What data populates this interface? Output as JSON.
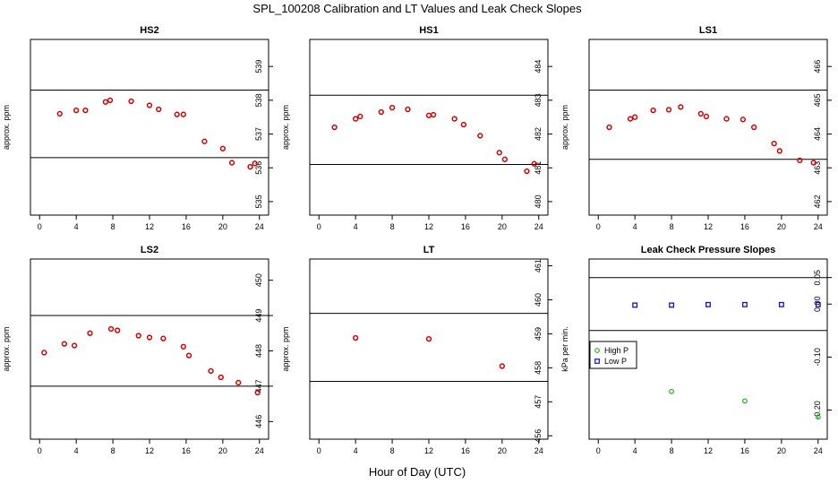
{
  "title": "SPL_100208  Calibration and LT Values and Leak Check Slopes",
  "xlabel": "Hour of Day (UTC)",
  "colors": {
    "points": "#d40000",
    "high": "#22bb22",
    "low": "#1111cc",
    "lines": "#000000"
  },
  "chart_data": [
    {
      "type": "scatter",
      "title": "HS2",
      "ylabel": "approx. ppm",
      "xlim": [
        -1,
        25
      ],
      "ylim": [
        534.6,
        539.8
      ],
      "xticks": [
        "0",
        "4",
        "8",
        "12",
        "16",
        "20",
        "24"
      ],
      "yticks": [
        "535",
        "536",
        "537",
        "538",
        "539"
      ],
      "hlines": [
        536.3,
        538.3
      ],
      "x": [
        2.2,
        4.0,
        5.0,
        7.2,
        7.7,
        10.0,
        12.0,
        13.0,
        15.0,
        15.7,
        18.0,
        20.0,
        21.0,
        23.0,
        23.5
      ],
      "y": [
        537.6,
        537.7,
        537.7,
        537.95,
        538.0,
        537.97,
        537.85,
        537.73,
        537.58,
        537.58,
        536.78,
        536.57,
        536.15,
        536.03,
        536.13
      ]
    },
    {
      "type": "scatter",
      "title": "HS1",
      "ylabel": "approx. ppm",
      "xlim": [
        -1,
        25
      ],
      "ylim": [
        479.6,
        484.8
      ],
      "xticks": [
        "0",
        "4",
        "8",
        "12",
        "16",
        "20",
        "24"
      ],
      "yticks": [
        "480",
        "481",
        "482",
        "483",
        "484"
      ],
      "hlines": [
        481.1,
        483.15
      ],
      "x": [
        1.7,
        4.0,
        4.5,
        6.8,
        8.0,
        9.7,
        12.0,
        12.5,
        14.8,
        15.8,
        17.6,
        19.7,
        20.3,
        22.7,
        23.5
      ],
      "y": [
        482.2,
        482.45,
        482.52,
        482.65,
        482.78,
        482.73,
        482.55,
        482.57,
        482.45,
        482.28,
        481.95,
        481.45,
        481.25,
        480.9,
        481.12
      ]
    },
    {
      "type": "scatter",
      "title": "LS1",
      "ylabel": "approx. ppm",
      "xlim": [
        -1,
        25
      ],
      "ylim": [
        461.6,
        466.8
      ],
      "xticks": [
        "0",
        "4",
        "8",
        "12",
        "16",
        "20",
        "24"
      ],
      "yticks": [
        "462",
        "463",
        "464",
        "465",
        "466"
      ],
      "hlines": [
        463.25,
        465.3
      ],
      "x": [
        1.2,
        3.5,
        4.0,
        6.0,
        7.7,
        9.0,
        11.2,
        11.8,
        14.0,
        15.8,
        17.0,
        19.2,
        19.8,
        22.0,
        23.5
      ],
      "y": [
        464.2,
        464.45,
        464.5,
        464.7,
        464.72,
        464.8,
        464.6,
        464.52,
        464.45,
        464.43,
        464.2,
        463.72,
        463.5,
        463.22,
        463.15
      ]
    },
    {
      "type": "scatter",
      "title": "LS2",
      "ylabel": "approx. ppm",
      "xlim": [
        -1,
        25
      ],
      "ylim": [
        445.5,
        450.6
      ],
      "xticks": [
        "0",
        "4",
        "8",
        "12",
        "16",
        "20",
        "24"
      ],
      "yticks": [
        "446",
        "447",
        "448",
        "449",
        "450"
      ],
      "hlines": [
        447.0,
        449.0
      ],
      "x": [
        0.5,
        2.7,
        3.8,
        5.5,
        7.8,
        8.5,
        10.8,
        12.0,
        13.5,
        15.7,
        16.3,
        18.7,
        19.8,
        21.7,
        23.8
      ],
      "y": [
        447.95,
        448.2,
        448.15,
        448.5,
        448.62,
        448.58,
        448.43,
        448.38,
        448.35,
        448.12,
        447.87,
        447.43,
        447.25,
        447.1,
        446.82
      ]
    },
    {
      "type": "scatter",
      "title": "LT",
      "ylabel": "approx. ppm",
      "xlim": [
        -1,
        25
      ],
      "ylim": [
        455.9,
        461.2
      ],
      "xticks": [
        "0",
        "4",
        "8",
        "12",
        "16",
        "20",
        "24"
      ],
      "yticks": [
        "456",
        "457",
        "458",
        "459",
        "460",
        "461"
      ],
      "hlines": [
        457.6,
        459.6
      ],
      "x": [
        4.0,
        12.0,
        20.0
      ],
      "y": [
        458.88,
        458.85,
        458.05
      ]
    },
    {
      "type": "scatter",
      "title": "Leak Check Pressure Slopes",
      "ylabel": "kPa per min.",
      "xlim": [
        -1,
        25
      ],
      "ylim": [
        -0.255,
        0.085
      ],
      "xticks": [
        "0",
        "4",
        "8",
        "12",
        "16",
        "20",
        "24"
      ],
      "yticks": [
        "-0.20",
        "-0.10",
        "0.00",
        "0.05"
      ],
      "ytick_values": [
        -0.2,
        -0.1,
        0.0,
        0.05
      ],
      "hlines": [
        -0.05,
        0.05
      ],
      "legend": {
        "position": "left",
        "entries": [
          "High P",
          "Low P"
        ]
      },
      "series": [
        {
          "name": "High P",
          "x": [
            8.0,
            16.0,
            24.0
          ],
          "y": [
            -0.165,
            -0.183,
            -0.213
          ]
        },
        {
          "name": "Low P",
          "x": [
            4.0,
            8.0,
            12.0,
            16.0,
            20.0,
            24.0
          ],
          "y": [
            -0.002,
            -0.002,
            -0.001,
            -0.001,
            -0.001,
            -0.001
          ]
        }
      ]
    }
  ]
}
